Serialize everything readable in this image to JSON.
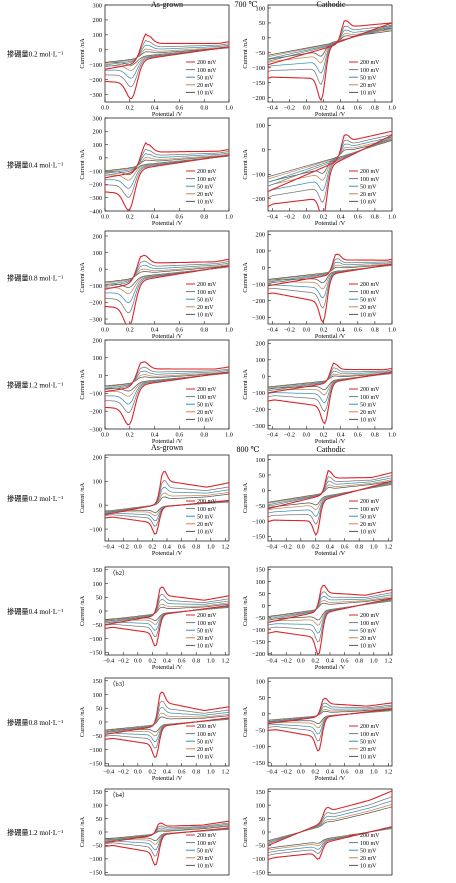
{
  "legend_labels": [
    "200 mV",
    "100 mV",
    "50 mV",
    "20 mV",
    "10 mV"
  ],
  "series_colors": [
    "#d9262b",
    "#777777",
    "#3f8fb0",
    "#c08a55",
    "#555555"
  ],
  "xlabel": "Potential /V",
  "ylabel": "Current /nA",
  "section_headers": {
    "top_col1": "As-grown",
    "top_temp": "700 ℃",
    "top_col2": "Cathodic",
    "bottom_col1": "As-grown",
    "bottom_temp": "800 ℃",
    "bottom_col2": "Cathodic"
  },
  "chart_data": [
    {
      "id": "a1",
      "type": "line",
      "row_label": "掺硼量0.2 mol·L⁻¹",
      "panel_label": "",
      "xlim": [
        0,
        1
      ],
      "xticks": [
        "0.0",
        "0.2",
        "0.4",
        "0.6",
        "0.8",
        "1.0"
      ],
      "ylim": [
        -350,
        300
      ],
      "yticks": [
        "300",
        "200",
        "100",
        "0",
        "−100",
        "−200",
        "−300"
      ],
      "ytick_values": [
        300,
        200,
        100,
        0,
        -100,
        -200,
        -300
      ],
      "anodic_peak": [
        0.33,
        210
      ],
      "cathodic_peak": [
        0.22,
        -270
      ],
      "anodic_base": [
        -130,
        10
      ],
      "cathodic_base": [
        -100,
        20
      ]
    },
    {
      "id": "c1",
      "type": "line",
      "row_label": "",
      "panel_label": "",
      "xlim": [
        -0.45,
        1
      ],
      "xticks": [
        "−0.4",
        "−0.2",
        "0.0",
        "0.2",
        "0.4",
        "0.6",
        "0.8",
        "1.0"
      ],
      "ylim": [
        -215,
        110
      ],
      "yticks": [
        "100",
        "50",
        "0",
        "−50",
        "−100",
        "−150",
        "−200"
      ],
      "ytick_values": [
        100,
        50,
        0,
        -50,
        -100,
        -150,
        -200
      ],
      "anodic_peak": [
        0.45,
        85
      ],
      "cathodic_peak": [
        0.18,
        -185
      ],
      "anodic_base": [
        -90,
        30
      ],
      "cathodic_base": [
        -100,
        50
      ]
    },
    {
      "id": "a2",
      "type": "line",
      "row_label": "掺硼量0.4 mol·L⁻¹",
      "panel_label": "",
      "xlim": [
        0,
        1
      ],
      "xticks": [
        "0.0",
        "0.2",
        "0.4",
        "0.6",
        "0.8",
        "1.0"
      ],
      "ylim": [
        -400,
        300
      ],
      "yticks": [
        "300",
        "200",
        "100",
        "0",
        "−100",
        "−200",
        "−300",
        "−400"
      ],
      "ytick_values": [
        300,
        200,
        100,
        0,
        -100,
        -200,
        -300,
        -400
      ],
      "anodic_peak": [
        0.33,
        230
      ],
      "cathodic_peak": [
        0.2,
        -320
      ],
      "anodic_base": [
        -150,
        15
      ],
      "cathodic_base": [
        -120,
        20
      ]
    },
    {
      "id": "c2",
      "type": "line",
      "row_label": "",
      "panel_label": "",
      "xlim": [
        -0.45,
        1
      ],
      "xticks": [
        "−0.4",
        "−0.2",
        "0.0",
        "0.2",
        "0.4",
        "0.6",
        "0.8",
        "1.0"
      ],
      "ylim": [
        -250,
        130
      ],
      "yticks": [
        "100",
        "0",
        "−100",
        "−200"
      ],
      "ytick_values": [
        100,
        0,
        -100,
        -200
      ],
      "anodic_peak": [
        0.45,
        110
      ],
      "cathodic_peak": [
        0.2,
        -215
      ],
      "anodic_base": [
        -170,
        50
      ],
      "cathodic_base": [
        -190,
        60
      ]
    },
    {
      "id": "a3",
      "type": "line",
      "row_label": "掺硼量0.8 mol·L⁻¹",
      "panel_label": "",
      "xlim": [
        0,
        1
      ],
      "xticks": [
        "0.0",
        "0.2",
        "0.4",
        "0.6",
        "0.8",
        "1.0"
      ],
      "ylim": [
        -330,
        230
      ],
      "yticks": [
        "200",
        "100",
        "0",
        "−100",
        "−200",
        "−300"
      ],
      "ytick_values": [
        200,
        100,
        0,
        -100,
        -200,
        -300
      ],
      "anodic_peak": [
        0.3,
        190
      ],
      "cathodic_peak": [
        0.2,
        -290
      ],
      "anodic_base": [
        -120,
        20
      ],
      "cathodic_base": [
        -100,
        20
      ]
    },
    {
      "id": "c3",
      "type": "line",
      "row_label": "",
      "panel_label": "",
      "xlim": [
        -0.45,
        1
      ],
      "xticks": [
        "−0.4",
        "−0.2",
        "0.0",
        "0.2",
        "0.4",
        "0.6",
        "0.8",
        "1.0"
      ],
      "ylim": [
        -340,
        220
      ],
      "yticks": [
        "200",
        "100",
        "0",
        "−100",
        "−200",
        "−300"
      ],
      "ytick_values": [
        200,
        100,
        0,
        -100,
        -200,
        -300
      ],
      "anodic_peak": [
        0.35,
        140
      ],
      "cathodic_peak": [
        0.2,
        -300
      ],
      "anodic_base": [
        -110,
        20
      ],
      "cathodic_base": [
        -100,
        20
      ]
    },
    {
      "id": "a4",
      "type": "line",
      "row_label": "掺硼量1.2 mol·L⁻¹",
      "panel_label": "",
      "xlim": [
        0,
        1
      ],
      "xticks": [
        "0.0",
        "0.2",
        "0.4",
        "0.6",
        "0.8",
        "1.0"
      ],
      "ylim": [
        -300,
        200
      ],
      "yticks": [
        "200",
        "100",
        "0",
        "−100",
        "−200",
        "−300"
      ],
      "ytick_values": [
        200,
        100,
        0,
        -100,
        -200,
        -300
      ],
      "anodic_peak": [
        0.3,
        160
      ],
      "cathodic_peak": [
        0.2,
        -230
      ],
      "anodic_base": [
        -90,
        15
      ],
      "cathodic_base": [
        -80,
        20
      ]
    },
    {
      "id": "c4",
      "type": "line",
      "row_label": "",
      "panel_label": "",
      "xlim": [
        -0.45,
        1
      ],
      "xticks": [
        "−0.4",
        "−0.2",
        "0.0",
        "0.2",
        "0.4",
        "0.6",
        "0.8",
        "1.0"
      ],
      "ylim": [
        -320,
        220
      ],
      "yticks": [
        "200",
        "100",
        "0",
        "−100",
        "−200",
        "−300"
      ],
      "ytick_values": [
        200,
        100,
        0,
        -100,
        -200,
        -300
      ],
      "anodic_peak": [
        0.32,
        130
      ],
      "cathodic_peak": [
        0.22,
        -260
      ],
      "anodic_base": [
        -100,
        20
      ],
      "cathodic_base": [
        -100,
        25
      ]
    },
    {
      "id": "b1",
      "type": "line",
      "row_label": "掺硼量0.2 mol·L⁻¹",
      "panel_label": "",
      "xlim": [
        -0.45,
        1.25
      ],
      "xticks": [
        "−0.4",
        "−0.2",
        "0.0",
        "0.2",
        "0.4",
        "0.6",
        "0.8",
        "1.0",
        "1.2"
      ],
      "ylim": [
        -150,
        210
      ],
      "yticks": [
        "200",
        "100",
        "0",
        "−100"
      ],
      "ytick_values": [
        200,
        100,
        0,
        -100
      ],
      "anodic_peak": [
        0.35,
        160
      ],
      "cathodic_peak": [
        0.25,
        -120
      ],
      "anodic_base": [
        -40,
        60
      ],
      "cathodic_base": [
        -30,
        20
      ]
    },
    {
      "id": "d1",
      "type": "line",
      "row_label": "",
      "panel_label": "",
      "xlim": [
        -0.45,
        1.25
      ],
      "xticks": [
        "−0.4",
        "−0.2",
        "0.0",
        "0.2",
        "0.4",
        "0.6",
        "0.8",
        "1.0",
        "1.2"
      ],
      "ylim": [
        -165,
        115
      ],
      "yticks": [
        "100",
        "50",
        "0",
        "−50",
        "−100",
        "−150"
      ],
      "ytick_values": [
        100,
        50,
        0,
        -50,
        -100,
        -150
      ],
      "anodic_peak": [
        0.38,
        85
      ],
      "cathodic_peak": [
        0.22,
        -115
      ],
      "anodic_base": [
        -60,
        40
      ],
      "cathodic_base": [
        -80,
        30
      ]
    },
    {
      "id": "b2",
      "type": "line",
      "row_label": "掺硼量0.4 mol·L⁻¹",
      "panel_label": "（b2）",
      "xlim": [
        -0.45,
        1.25
      ],
      "xticks": [
        "−0.4",
        "−0.2",
        "0.0",
        "0.2",
        "0.4",
        "0.6",
        "0.8",
        "1.0",
        "1.2"
      ],
      "ylim": [
        -160,
        160
      ],
      "yticks": [
        "150",
        "100",
        "50",
        "0",
        "−50",
        "−100",
        "−150"
      ],
      "ytick_values": [
        150,
        100,
        50,
        0,
        -50,
        -100,
        -150
      ],
      "anodic_peak": [
        0.32,
        120
      ],
      "cathodic_peak": [
        0.25,
        -120
      ],
      "anodic_base": [
        -50,
        30
      ],
      "cathodic_base": [
        -40,
        20
      ]
    },
    {
      "id": "d2",
      "type": "line",
      "row_label": "",
      "panel_label": "",
      "xlim": [
        -0.45,
        1.25
      ],
      "xticks": [
        "−0.4",
        "−0.2",
        "0.0",
        "0.2",
        "0.4",
        "0.6",
        "0.8",
        "1.0",
        "1.2"
      ],
      "ylim": [
        -205,
        160
      ],
      "yticks": [
        "150",
        "100",
        "50",
        "0",
        "−50",
        "−100",
        "−150",
        "−200"
      ],
      "ytick_values": [
        150,
        100,
        50,
        0,
        -50,
        -100,
        -150,
        -200
      ],
      "anodic_peak": [
        0.3,
        125
      ],
      "cathodic_peak": [
        0.25,
        -180
      ],
      "anodic_base": [
        -70,
        40
      ],
      "cathodic_base": [
        -80,
        30
      ]
    },
    {
      "id": "b3",
      "type": "line",
      "row_label": "掺硼量0.8 mol·L⁻¹",
      "panel_label": "（b3）",
      "xlim": [
        -0.45,
        1.25
      ],
      "xticks": [
        "−0.4",
        "−0.2",
        "0.0",
        "0.2",
        "0.4",
        "0.6",
        "0.8",
        "1.0",
        "1.2"
      ],
      "ylim": [
        -160,
        160
      ],
      "yticks": [
        "150",
        "100",
        "50",
        "0",
        "−50",
        "−100",
        "−150"
      ],
      "ytick_values": [
        150,
        100,
        50,
        0,
        -50,
        -100,
        -150
      ],
      "anodic_peak": [
        0.32,
        145
      ],
      "cathodic_peak": [
        0.25,
        -120
      ],
      "anodic_base": [
        -45,
        25
      ],
      "cathodic_base": [
        -40,
        15
      ]
    },
    {
      "id": "d3",
      "type": "line",
      "row_label": "",
      "panel_label": "",
      "xlim": [
        -0.45,
        1.25
      ],
      "xticks": [
        "−0.4",
        "−0.2",
        "0.0",
        "0.2",
        "0.4",
        "0.6",
        "0.8",
        "1.0",
        "1.2"
      ],
      "ylim": [
        -160,
        110
      ],
      "yticks": [
        "100",
        "50",
        "0",
        "−50",
        "−100",
        "−150"
      ],
      "ytick_values": [
        100,
        50,
        0,
        -50,
        -100,
        -150
      ],
      "anodic_peak": [
        0.32,
        65
      ],
      "cathodic_peak": [
        0.25,
        -110
      ],
      "anodic_base": [
        -30,
        20
      ],
      "cathodic_base": [
        -30,
        15
      ]
    },
    {
      "id": "b4",
      "type": "line",
      "row_label": "掺硼量1.2 mol·L⁻¹",
      "panel_label": "（b4）",
      "xlim": [
        -0.45,
        1.25
      ],
      "xticks": [],
      "ylim": [
        -160,
        160
      ],
      "yticks": [
        "150",
        "100",
        "50",
        "0",
        "−50",
        "−100",
        "−150"
      ],
      "ytick_values": [
        150,
        100,
        50,
        0,
        -50,
        -100,
        -150
      ],
      "anodic_peak": [
        0.3,
        50
      ],
      "cathodic_peak": [
        0.25,
        -120
      ],
      "anodic_base": [
        -40,
        30
      ],
      "cathodic_base": [
        -30,
        15
      ]
    },
    {
      "id": "d4",
      "type": "line",
      "row_label": "",
      "panel_label": "",
      "xlim": [
        -0.45,
        1.25
      ],
      "xticks": [],
      "ylim": [
        -160,
        160
      ],
      "yticks": [
        "150",
        "100",
        "50",
        "0",
        "−50",
        "−100",
        "−150"
      ],
      "ytick_values": [
        150,
        100,
        50,
        0,
        -50,
        -100,
        -150
      ],
      "anodic_peak": [
        0.35,
        60
      ],
      "cathodic_peak": [
        0.25,
        -60
      ],
      "anodic_base": [
        -50,
        140
      ],
      "cathodic_base": [
        -90,
        20
      ]
    }
  ]
}
